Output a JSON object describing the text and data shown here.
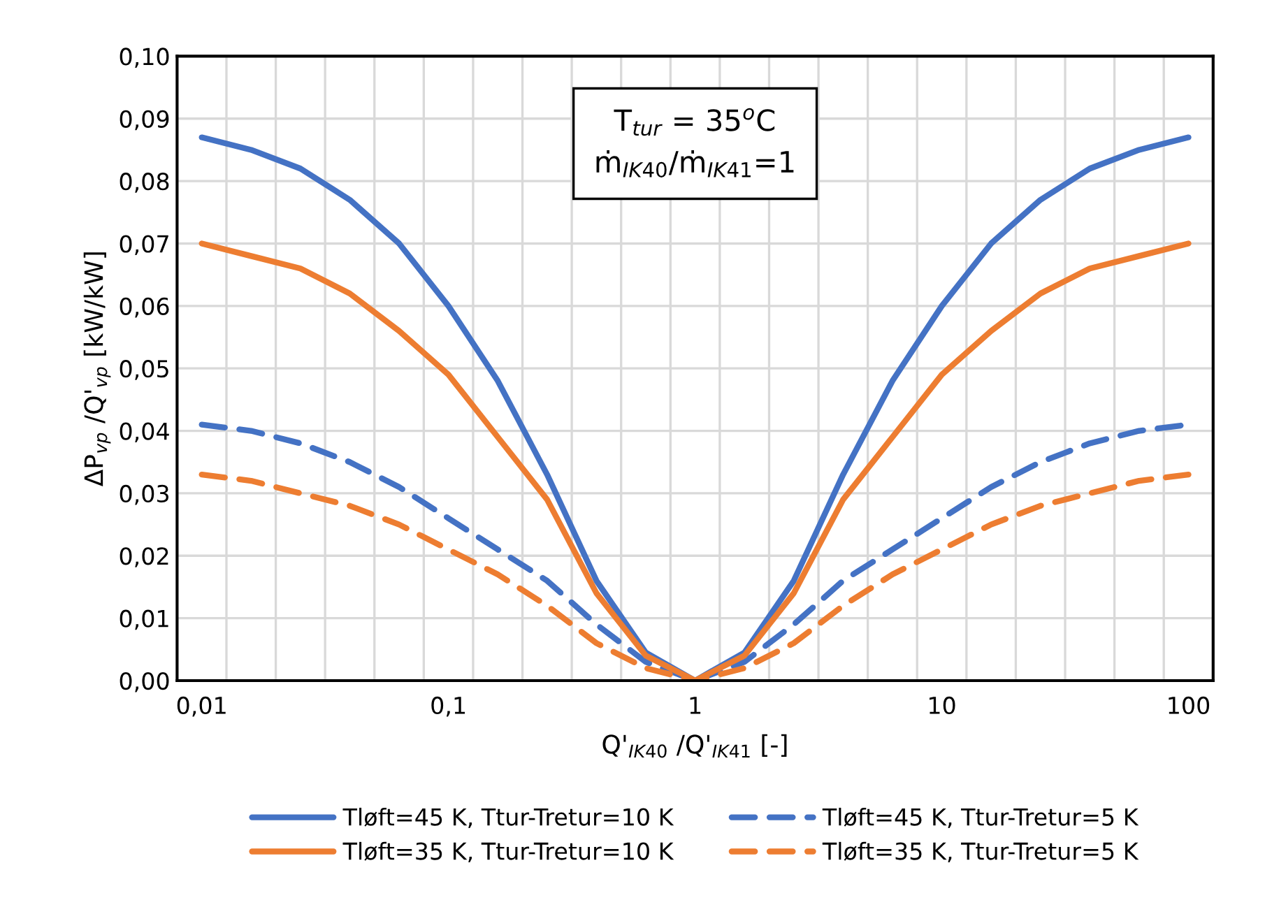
{
  "chart_data": {
    "type": "line",
    "categories": [
      "0,01",
      null,
      null,
      null,
      null,
      "0,1",
      null,
      null,
      null,
      null,
      "1",
      null,
      null,
      null,
      null,
      "10",
      null,
      null,
      null,
      null,
      "100"
    ],
    "xlabel": "Q'$_{IK40}$ /Q'$_{IK41}$ [-]",
    "ylabel": "ΔP$_{vp}$ /Q'$_{vp}$ [kW/kW]",
    "ylim": [
      0,
      0.1
    ],
    "yticks": [
      {
        "value": 0,
        "label": "0,00"
      },
      {
        "value": 0.01,
        "label": "0,01"
      },
      {
        "value": 0.02,
        "label": "0,02"
      },
      {
        "value": 0.03,
        "label": "0,03"
      },
      {
        "value": 0.04,
        "label": "0,04"
      },
      {
        "value": 0.05,
        "label": "0,05"
      },
      {
        "value": 0.06,
        "label": "0,06"
      },
      {
        "value": 0.07,
        "label": "0,07"
      },
      {
        "value": 0.08,
        "label": "0,08"
      },
      {
        "value": 0.09,
        "label": "0,09"
      },
      {
        "value": 0.1,
        "label": "0,10"
      }
    ],
    "grid": true,
    "legend": "bottom",
    "marker": "none",
    "annotations": [
      "T$_{tur}$ = 35$^{o}$C\nṁ$_{IK40}$/ṁ$_{IK41}$=1"
    ],
    "series": [
      {
        "name": "Tløft=45 K, Ttur-Tretur=10 K",
        "color": "#4472c4",
        "line_style": "solid",
        "values": [
          0.087,
          0.085,
          0.082,
          0.077,
          0.07,
          0.06,
          0.048,
          0.033,
          0.016,
          0.0045,
          0,
          0.0045,
          0.016,
          0.033,
          0.048,
          0.06,
          0.07,
          0.077,
          0.082,
          0.085,
          0.087
        ]
      },
      {
        "name": "Tløft=45 K, Ttur-Tretur=5 K",
        "color": "#4472c4",
        "line_style": "dashed",
        "values": [
          0.041,
          0.04,
          0.038,
          0.035,
          0.031,
          0.026,
          0.021,
          0.016,
          0.009,
          0.003,
          0,
          0.003,
          0.009,
          0.016,
          0.021,
          0.026,
          0.031,
          0.035,
          0.038,
          0.04,
          0.041
        ]
      },
      {
        "name": "Tløft=35 K, Ttur-Tretur=10 K",
        "color": "#ed7d31",
        "line_style": "solid",
        "values": [
          0.07,
          0.068,
          0.066,
          0.062,
          0.056,
          0.049,
          0.039,
          0.029,
          0.014,
          0.004,
          0,
          0.004,
          0.014,
          0.029,
          0.039,
          0.049,
          0.056,
          0.062,
          0.066,
          0.068,
          0.07
        ]
      },
      {
        "name": "Tløft=35 K, Ttur-Tretur=5 K",
        "color": "#ed7d31",
        "line_style": "dashed",
        "values": [
          0.033,
          0.032,
          0.03,
          0.028,
          0.025,
          0.021,
          0.017,
          0.012,
          0.006,
          0.002,
          0,
          0.002,
          0.006,
          0.012,
          0.017,
          0.021,
          0.025,
          0.028,
          0.03,
          0.032,
          0.033
        ]
      }
    ]
  }
}
